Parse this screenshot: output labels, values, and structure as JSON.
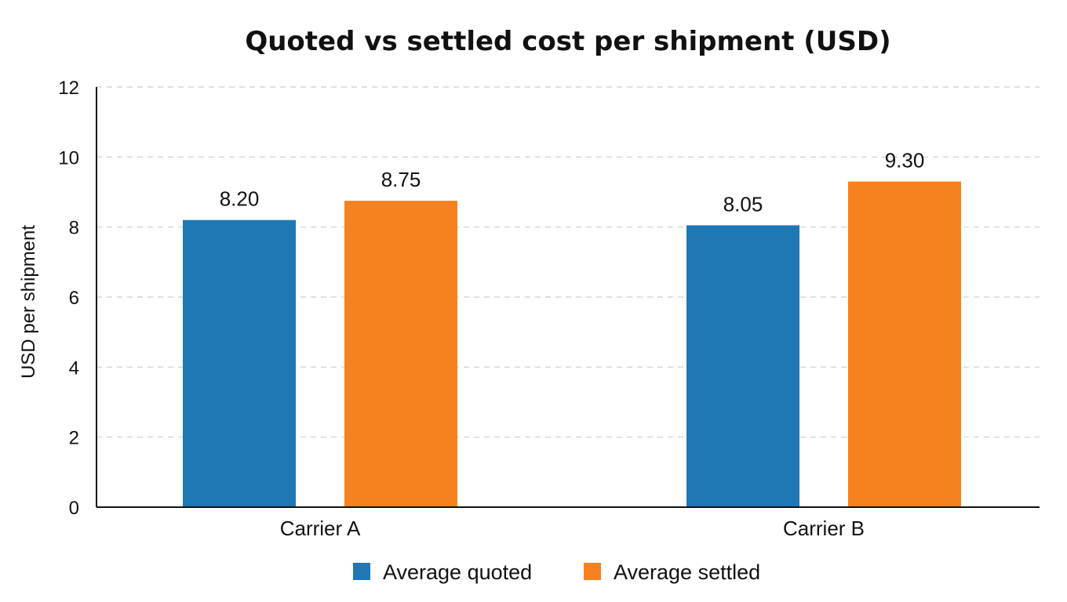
{
  "chart_data": {
    "type": "bar",
    "title": "Quoted vs settled cost per shipment (USD)",
    "xlabel": "",
    "ylabel": "USD per shipment",
    "ylim": [
      0,
      12
    ],
    "yticks": [
      0,
      2,
      4,
      6,
      8,
      10,
      12
    ],
    "grid": true,
    "legend_position": "bottom",
    "categories": [
      "Carrier A",
      "Carrier B"
    ],
    "series": [
      {
        "name": "Average quoted",
        "values": [
          8.2,
          8.05
        ],
        "labels": [
          "8.20",
          "8.05"
        ],
        "color": "#1f77b4"
      },
      {
        "name": "Average settled",
        "values": [
          8.75,
          9.3
        ],
        "labels": [
          "8.75",
          "9.30"
        ],
        "color": "#f5821f"
      }
    ]
  }
}
